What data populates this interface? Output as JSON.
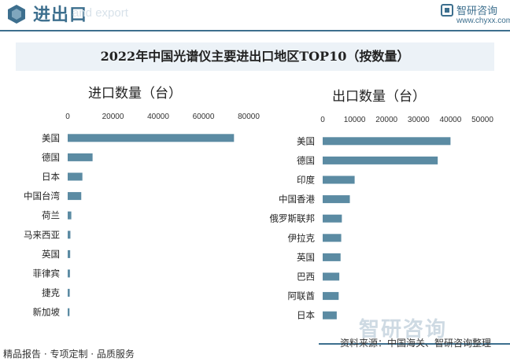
{
  "header": {
    "title": "进出口",
    "subtitle": "and export",
    "brand_name": "智研咨询",
    "brand_url": "www.chyxx.com",
    "accent_color": "#3d6f8e"
  },
  "watermark": "智研咨询",
  "footer": {
    "left": "精品报告 · 专项定制 · 品质服务",
    "right": "资料来源：中国海关、智研咨询整理"
  },
  "chart_data": [
    {
      "type": "bar",
      "orientation": "horizontal",
      "title": "2022年中国光谱仪主要进出口地区TOP10（按数量）",
      "xlabel": "进口数量（台）",
      "xticks": [
        "0",
        "20000",
        "40000",
        "60000",
        "80000"
      ],
      "xlim": [
        0,
        80000
      ],
      "color": "#5b8ba3",
      "categories": [
        "美国",
        "德国",
        "日本",
        "中国台湾",
        "荷兰",
        "马来西亚",
        "英国",
        "菲律宾",
        "捷克",
        "新加坡"
      ],
      "values": [
        73500,
        11000,
        6500,
        6000,
        1600,
        1200,
        1100,
        1000,
        900,
        800
      ]
    },
    {
      "type": "bar",
      "orientation": "horizontal",
      "xlabel": "出口数量（台）",
      "xticks": [
        "0",
        "10000",
        "20000",
        "30000",
        "40000",
        "50000"
      ],
      "xlim": [
        0,
        50000
      ],
      "color": "#5b8ba3",
      "categories": [
        "美国",
        "德国",
        "印度",
        "中国香港",
        "俄罗斯联邦",
        "伊拉克",
        "英国",
        "巴西",
        "阿联酋",
        "日本"
      ],
      "values": [
        40000,
        36000,
        10000,
        8500,
        6000,
        5800,
        5600,
        5200,
        5000,
        4400
      ]
    }
  ]
}
